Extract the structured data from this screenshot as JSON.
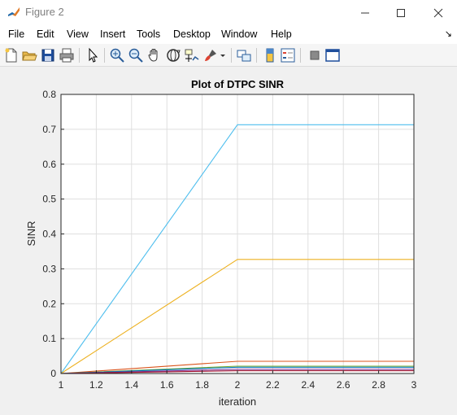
{
  "window": {
    "title": "Figure 2",
    "icon": "matlab-logo-icon",
    "controls": [
      "minimize-icon",
      "maximize-icon",
      "close-icon"
    ]
  },
  "menu": {
    "items": [
      "File",
      "Edit",
      "View",
      "Insert",
      "Tools",
      "Desktop",
      "Window",
      "Help"
    ],
    "overflow_icon": "dock-arrow-icon"
  },
  "toolbar": {
    "buttons": [
      "new-figure-icon",
      "open-file-icon",
      "save-icon",
      "print-icon",
      "edit-plot-arrow-icon",
      "zoom-in-icon",
      "zoom-out-icon",
      "pan-hand-icon",
      "rotate-3d-icon",
      "data-cursor-icon",
      "brush-icon",
      "brush-dropdown-icon",
      "link-plot-icon",
      "insert-colorbar-icon",
      "insert-legend-icon",
      "hide-plot-tools-icon",
      "show-plot-tools-icon"
    ]
  },
  "chart_data": {
    "type": "line",
    "title": "Plot of DTPC SINR",
    "xlabel": "iteration",
    "ylabel": "SINR",
    "xlim": [
      1,
      3
    ],
    "ylim": [
      0,
      0.8
    ],
    "xticks": [
      "1",
      "1.2",
      "1.4",
      "1.6",
      "1.8",
      "2",
      "2.2",
      "2.4",
      "2.6",
      "2.8",
      "3"
    ],
    "yticks": [
      "0",
      "0.1",
      "0.2",
      "0.3",
      "0.4",
      "0.5",
      "0.6",
      "0.7",
      "0.8"
    ],
    "grid": true,
    "x": [
      1,
      2,
      3
    ],
    "series": [
      {
        "color": "#4DBEEE",
        "values": [
          0,
          0.713,
          0.713
        ]
      },
      {
        "color": "#EDB120",
        "values": [
          0,
          0.327,
          0.327
        ]
      },
      {
        "color": "#D95319",
        "values": [
          0,
          0.035,
          0.035
        ]
      },
      {
        "color": "#77AC30",
        "values": [
          0,
          0.021,
          0.021
        ]
      },
      {
        "color": "#0072BD",
        "values": [
          0,
          0.018,
          0.018
        ]
      },
      {
        "color": "#7E2F8E",
        "values": [
          0,
          0.012,
          0.012
        ]
      },
      {
        "color": "#A2142F",
        "values": [
          0,
          0.008,
          0.008
        ]
      }
    ]
  }
}
